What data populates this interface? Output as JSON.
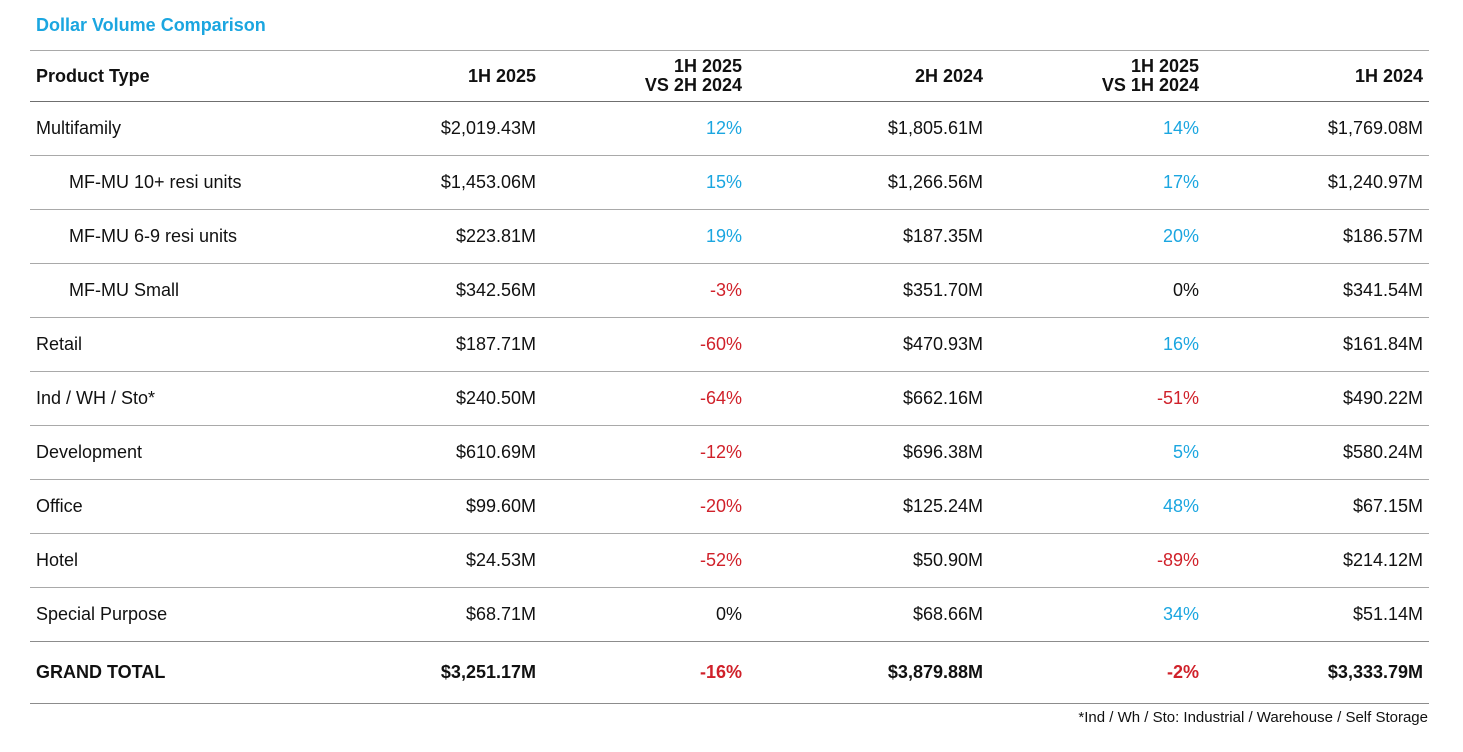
{
  "title": "Dollar Volume Comparison",
  "colors": {
    "accent": "#1ba6e0",
    "negative": "#d0212a",
    "neutral": "#111111"
  },
  "table": {
    "headers": {
      "product_type": "Product Type",
      "h1_2025": "1H 2025",
      "vs_2h_2024_line1": "1H 2025",
      "vs_2h_2024_line2": "VS 2H 2024",
      "h2_2024": "2H 2024",
      "vs_1h_2024_line1": "1H 2025",
      "vs_1h_2024_line2": "VS 1H 2024",
      "h1_2024": "1H 2024"
    },
    "rows": [
      {
        "name": "Multifamily",
        "h1_2025": "$2,019.43M",
        "vs_2h_2024": "12%",
        "vs_2h_2024_sign": "pos",
        "h2_2024": "$1,805.61M",
        "vs_1h_2024": "14%",
        "vs_1h_2024_sign": "pos",
        "h1_2024": "$1,769.08M"
      },
      {
        "name": "MF-MU 10+ resi units",
        "h1_2025": "$1,453.06M",
        "vs_2h_2024": "15%",
        "vs_2h_2024_sign": "pos",
        "h2_2024": "$1,266.56M",
        "vs_1h_2024": "17%",
        "vs_1h_2024_sign": "pos",
        "h1_2024": "$1,240.97M"
      },
      {
        "name": "MF-MU 6-9 resi units",
        "h1_2025": "$223.81M",
        "vs_2h_2024": "19%",
        "vs_2h_2024_sign": "pos",
        "h2_2024": "$187.35M",
        "vs_1h_2024": "20%",
        "vs_1h_2024_sign": "pos",
        "h1_2024": "$186.57M"
      },
      {
        "name": "MF-MU Small",
        "h1_2025": "$342.56M",
        "vs_2h_2024": "-3%",
        "vs_2h_2024_sign": "neg",
        "h2_2024": "$351.70M",
        "vs_1h_2024": "0%",
        "vs_1h_2024_sign": "zero",
        "h1_2024": "$341.54M"
      },
      {
        "name": "Retail",
        "h1_2025": "$187.71M",
        "vs_2h_2024": "-60%",
        "vs_2h_2024_sign": "neg",
        "h2_2024": "$470.93M",
        "vs_1h_2024": "16%",
        "vs_1h_2024_sign": "pos",
        "h1_2024": "$161.84M"
      },
      {
        "name": "Ind / WH / Sto*",
        "h1_2025": "$240.50M",
        "vs_2h_2024": "-64%",
        "vs_2h_2024_sign": "neg",
        "h2_2024": "$662.16M",
        "vs_1h_2024": "-51%",
        "vs_1h_2024_sign": "neg",
        "h1_2024": "$490.22M"
      },
      {
        "name": "Development",
        "h1_2025": "$610.69M",
        "vs_2h_2024": "-12%",
        "vs_2h_2024_sign": "neg",
        "h2_2024": "$696.38M",
        "vs_1h_2024": "5%",
        "vs_1h_2024_sign": "pos",
        "h1_2024": "$580.24M"
      },
      {
        "name": "Office",
        "h1_2025": "$99.60M",
        "vs_2h_2024": "-20%",
        "vs_2h_2024_sign": "neg",
        "h2_2024": "$125.24M",
        "vs_1h_2024": "48%",
        "vs_1h_2024_sign": "pos",
        "h1_2024": "$67.15M"
      },
      {
        "name": "Hotel",
        "h1_2025": "$24.53M",
        "vs_2h_2024": "-52%",
        "vs_2h_2024_sign": "neg",
        "h2_2024": "$50.90M",
        "vs_1h_2024": "-89%",
        "vs_1h_2024_sign": "neg",
        "h1_2024": "$214.12M"
      },
      {
        "name": "Special Purpose",
        "h1_2025": "$68.71M",
        "vs_2h_2024": "0%",
        "vs_2h_2024_sign": "zero",
        "h2_2024": "$68.66M",
        "vs_1h_2024": "34%",
        "vs_1h_2024_sign": "pos",
        "h1_2024": "$51.14M"
      }
    ],
    "total": {
      "name": "GRAND TOTAL",
      "h1_2025": "$3,251.17M",
      "vs_2h_2024": "-16%",
      "vs_2h_2024_sign": "neg",
      "h2_2024": "$3,879.88M",
      "vs_1h_2024": "-2%",
      "vs_1h_2024_sign": "neg",
      "h1_2024": "$3,333.79M"
    }
  },
  "footnote": "*Ind / Wh / Sto: Industrial / Warehouse / Self Storage"
}
